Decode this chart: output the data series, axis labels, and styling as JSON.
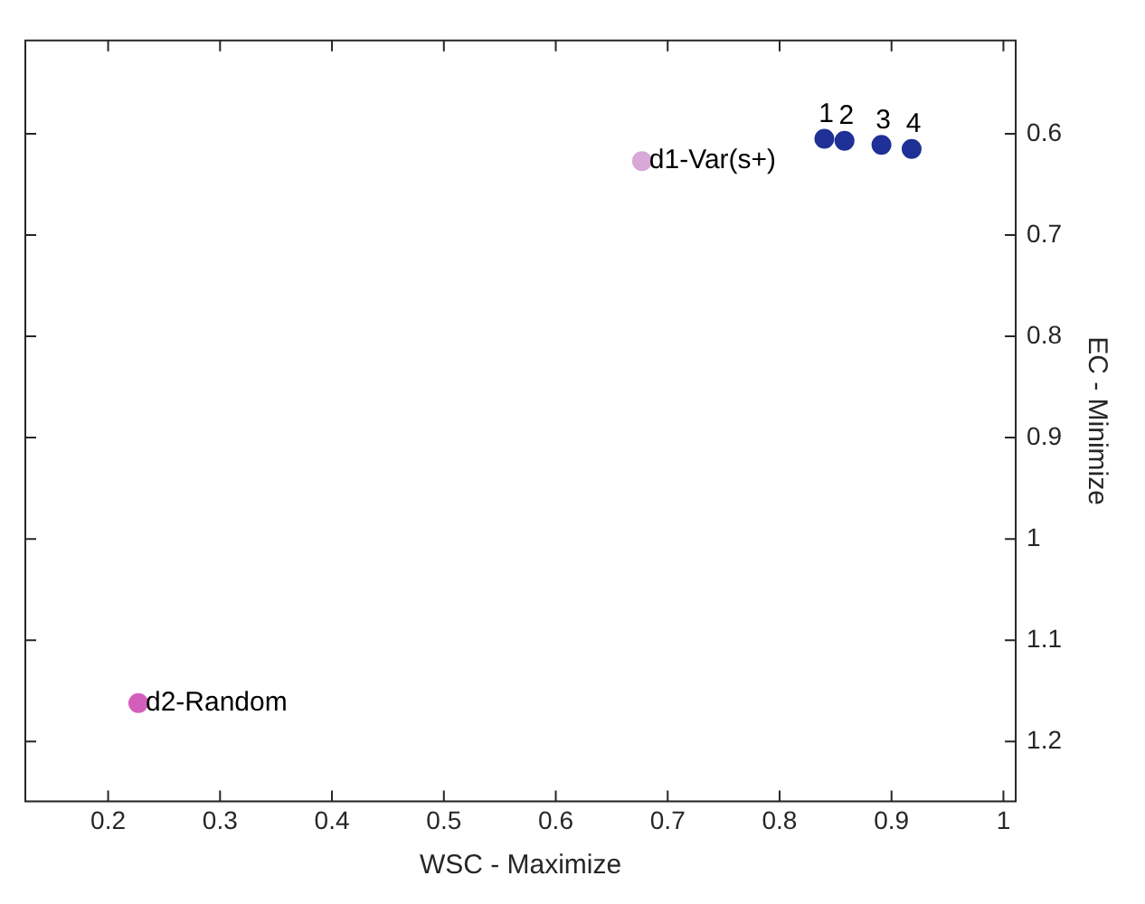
{
  "chart_data": {
    "type": "scatter",
    "xlabel": "WSC - Maximize",
    "ylabel": "EC - Minimize",
    "x": [
      0.84,
      0.858,
      0.891,
      0.918,
      0.677,
      0.227
    ],
    "values": [
      0.605,
      0.607,
      0.611,
      0.615,
      0.627,
      1.162
    ],
    "colors": [
      "#1f3196",
      "#1f3196",
      "#1f3196",
      "#1f3196",
      "#d8a8d8",
      "#d35fbd"
    ],
    "xlim": [
      0.126,
      1.011
    ],
    "xticks": [
      0.2,
      0.3,
      0.4,
      0.5,
      0.6,
      0.7,
      0.8,
      0.9,
      1
    ],
    "ylim": [
      1.259,
      0.508
    ],
    "yticks": [
      0.6,
      0.7,
      0.8,
      0.9,
      1,
      1.1,
      1.2
    ],
    "grid": false,
    "marker": "circle",
    "annotations": [
      {
        "text": "1",
        "x": 0.84,
        "y": 0.605
      },
      {
        "text": "2",
        "x": 0.858,
        "y": 0.607
      },
      {
        "text": "3",
        "x": 0.891,
        "y": 0.611
      },
      {
        "text": "4",
        "x": 0.918,
        "y": 0.615
      },
      {
        "text": "d1-Var(s+)",
        "x": 0.677,
        "y": 0.627
      },
      {
        "text": "d2-Random",
        "x": 0.227,
        "y": 1.162
      }
    ]
  }
}
